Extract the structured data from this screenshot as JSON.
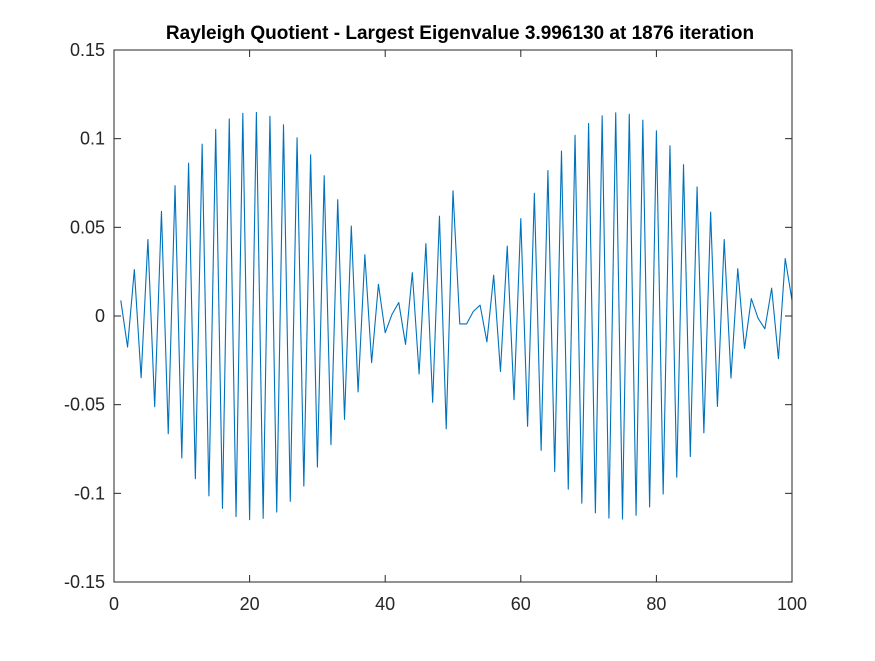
{
  "chart_data": {
    "type": "line",
    "title": "Rayleigh Quotient - Largest Eigenvalue 3.996130 at 1876 iteration",
    "xlabel": "",
    "ylabel": "",
    "xlim": [
      0,
      100
    ],
    "ylim": [
      -0.15,
      0.15
    ],
    "xticks": [
      0,
      20,
      40,
      60,
      80,
      100
    ],
    "xtick_labels": [
      "0",
      "20",
      "40",
      "60",
      "80",
      "100"
    ],
    "yticks": [
      -0.15,
      -0.1,
      -0.05,
      0,
      0.05,
      0.1,
      0.15
    ],
    "ytick_labels": [
      "-0.15",
      "-0.1",
      "-0.05",
      "0",
      "0.05",
      "0.1",
      "0.15"
    ],
    "grid": false,
    "line_color": "#0072BD",
    "series": [
      {
        "x": [
          1,
          2,
          3,
          4,
          5,
          6,
          7,
          8,
          9,
          10,
          11,
          12,
          13,
          14,
          15,
          16,
          17,
          18,
          19,
          20,
          21,
          22,
          23,
          24,
          25,
          26,
          27,
          28,
          29,
          30,
          31,
          32,
          33,
          34,
          35,
          36,
          37,
          38,
          39,
          40,
          41,
          42,
          43,
          44,
          45,
          46,
          47,
          48,
          49,
          50,
          51,
          52,
          53,
          54,
          55,
          56,
          57,
          58,
          59,
          60,
          61,
          62,
          63,
          64,
          65,
          66,
          67,
          68,
          69,
          70,
          71,
          72,
          73,
          74,
          75,
          76,
          77,
          78,
          79,
          80,
          81,
          82,
          83,
          84,
          85,
          86,
          87,
          88,
          89,
          90,
          91,
          92,
          93,
          94,
          95,
          96,
          97,
          98,
          99,
          100
        ],
        "y": [
          0.0088,
          -0.0175,
          0.0262,
          -0.0348,
          0.0431,
          -0.0512,
          0.059,
          -0.0664,
          0.0735,
          -0.0801,
          0.0862,
          -0.0918,
          0.0969,
          -0.1014,
          0.1052,
          -0.1085,
          0.1111,
          -0.1131,
          0.1143,
          -0.1149,
          0.1148,
          -0.1141,
          0.1126,
          -0.1106,
          0.1078,
          -0.1045,
          0.1005,
          -0.0959,
          0.0909,
          -0.0852,
          0.0791,
          -0.0726,
          0.0656,
          -0.0583,
          0.0507,
          -0.0428,
          0.0346,
          -0.0263,
          0.0179,
          -0.0094,
          0.0009,
          0.0076,
          -0.016,
          0.0244,
          -0.0327,
          0.0408,
          -0.0487,
          0.0563,
          -0.0636,
          0.0706,
          -0.0045,
          -0.0045,
          0.0026,
          0.0061,
          -0.0146,
          0.023,
          -0.0313,
          0.0394,
          -0.0472,
          0.0549,
          -0.0622,
          0.0692,
          -0.0758,
          0.082,
          -0.0877,
          0.093,
          -0.0977,
          0.1019,
          -0.1056,
          0.1086,
          -0.111,
          0.1129,
          -0.114,
          0.1146,
          -0.1145,
          0.1138,
          -0.1124,
          0.1104,
          -0.1077,
          0.1044,
          -0.1004,
          0.096,
          -0.0909,
          0.0853,
          -0.0793,
          0.0728,
          -0.0659,
          0.0586,
          -0.051,
          0.0431,
          -0.035,
          0.0267,
          -0.0183,
          0.0098,
          -0.0013,
          -0.0072,
          0.0157,
          -0.0241,
          0.0324,
          0.0088
        ]
      }
    ]
  }
}
